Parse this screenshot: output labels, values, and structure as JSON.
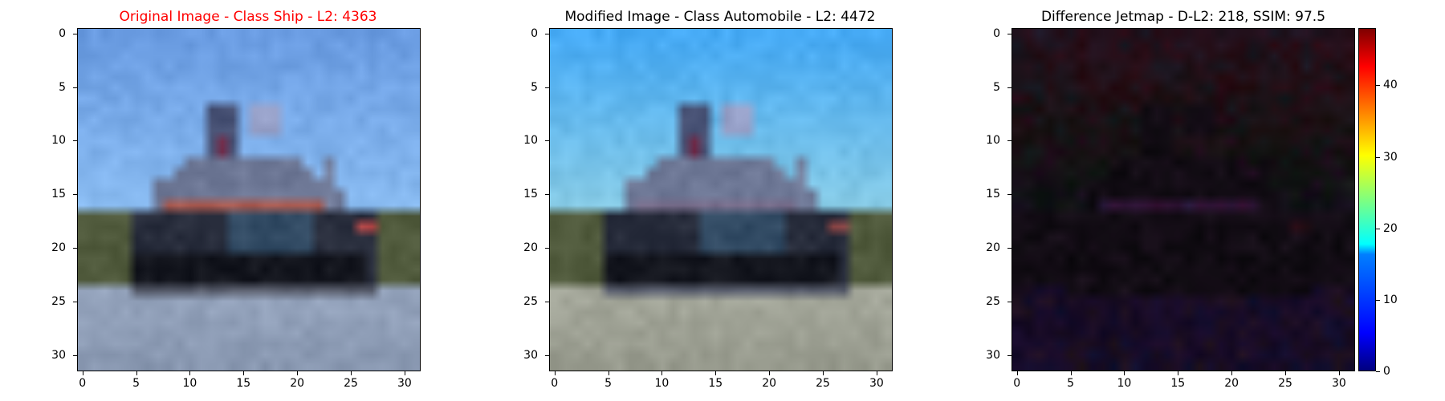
{
  "panels": [
    {
      "title": "Original Image - Class Ship - L2: 4363",
      "title_color": "#ff0000"
    },
    {
      "title": "Modified Image - Class Automobile - L2: 4472",
      "title_color": "#000000"
    },
    {
      "title": "Difference Jetmap - D-L2: 218, SSIM: 97.5",
      "title_color": "#000000"
    }
  ],
  "axis_ticks": {
    "x": [
      "0",
      "5",
      "10",
      "15",
      "20",
      "25",
      "30"
    ],
    "y": [
      "0",
      "5",
      "10",
      "15",
      "20",
      "25",
      "30"
    ]
  },
  "colorbar": {
    "ticks": [
      "0",
      "10",
      "20",
      "30",
      "40"
    ],
    "colormap": "jet",
    "range": [
      0,
      48
    ]
  },
  "image_size": [
    32,
    32
  ]
}
